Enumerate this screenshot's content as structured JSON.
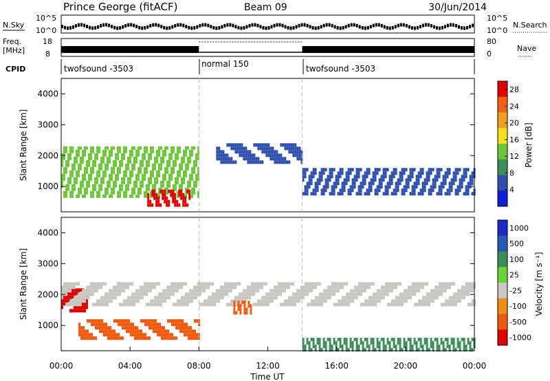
{
  "header": {
    "station": "Prince George (fitACF)",
    "beam": "Beam 09",
    "date": "30/Jun/2014"
  },
  "noise_panel": {
    "left_label": "N.Sky",
    "right_label": "N.Search",
    "left_ticks": [
      "10^5",
      "10^0"
    ],
    "right_ticks": [
      "10^5",
      "10^0"
    ]
  },
  "freq_panel": {
    "left_label_line1": "Freq.",
    "left_label_line2": "[MHz]",
    "right_label": "Nave",
    "left_ticks": [
      "18",
      "8"
    ],
    "right_ticks": [
      "80",
      "0"
    ]
  },
  "cpid": {
    "label": "CPID",
    "segments": [
      {
        "name": "twofsound -3503",
        "start_hour": 0,
        "end_hour": 8
      },
      {
        "name": "normal 150",
        "start_hour": 8,
        "end_hour": 14
      },
      {
        "name": "twofsound -3503",
        "start_hour": 14,
        "end_hour": 24
      }
    ]
  },
  "chart_data": [
    {
      "type": "heatmap",
      "name": "Power",
      "ylabel": "Slant Range [km]",
      "ylim": [
        180,
        4500
      ],
      "yticks": [
        "1000",
        "2000",
        "3000",
        "4000"
      ],
      "ytick_values": [
        1000,
        2000,
        3000,
        4000
      ],
      "colorbar_label": "Power [dB]",
      "colorbar_ticks": [
        "4",
        "8",
        "12",
        "16",
        "20",
        "24",
        "28"
      ],
      "colorbar_range": [
        0,
        30
      ],
      "colors": [
        "#0c20d8",
        "#2e4faa",
        "#3c8f5a",
        "#6cc83a",
        "#f0e020",
        "#f0a020",
        "#f06010",
        "#e00000"
      ],
      "scatter_bands": [
        {
          "start_hour": 0.0,
          "end_hour": 8.0,
          "range_start_km": 700,
          "range_end_km": 2300,
          "level": 12
        },
        {
          "start_hour": 5.0,
          "end_hour": 7.5,
          "range_start_km": 400,
          "range_end_km": 900,
          "level": 28
        },
        {
          "start_hour": 9.0,
          "end_hour": 14.0,
          "range_start_km": 1800,
          "range_end_km": 2400,
          "level": 6
        },
        {
          "start_hour": 14.0,
          "end_hour": 24.0,
          "range_start_km": 800,
          "range_end_km": 1600,
          "level": 6
        }
      ]
    },
    {
      "type": "heatmap",
      "name": "Velocity",
      "ylabel": "Slant Range [km]",
      "ylim": [
        180,
        4500
      ],
      "yticks": [
        "1000",
        "2000",
        "3000",
        "4000"
      ],
      "ytick_values": [
        1000,
        2000,
        3000,
        4000
      ],
      "xlabel": "Time UT",
      "xticks": [
        "00:00",
        "04:00",
        "08:00",
        "12:00",
        "16:00",
        "20:00",
        "00:00"
      ],
      "xtick_hours": [
        0,
        4,
        8,
        12,
        16,
        20,
        24
      ],
      "colorbar_label": "Velocity [m s⁻¹]",
      "colorbar_ticks": [
        "1000",
        "500",
        "100",
        "25",
        "-25",
        "-100",
        "-500",
        "-1000"
      ],
      "colors": [
        "#1c2ac8",
        "#2a5ab0",
        "#3c8c5a",
        "#6cd23a",
        "#c8c8c0",
        "#f08c18",
        "#f05a10",
        "#e00000"
      ],
      "scatter_bands": [
        {
          "start_hour": 0.0,
          "end_hour": 1.5,
          "range_start_km": 1500,
          "range_end_km": 2200,
          "level": -1000
        },
        {
          "start_hour": 1.0,
          "end_hour": 8.0,
          "range_start_km": 600,
          "range_end_km": 1200,
          "level": -500
        },
        {
          "start_hour": 0.0,
          "end_hour": 24.0,
          "range_start_km": 1700,
          "range_end_km": 2400,
          "level": 0
        },
        {
          "start_hour": 10.0,
          "end_hour": 11.0,
          "range_start_km": 1400,
          "range_end_km": 1800,
          "level": -500
        },
        {
          "start_hour": 14.0,
          "end_hour": 24.0,
          "range_start_km": 200,
          "range_end_km": 600,
          "level": 100
        }
      ]
    }
  ]
}
